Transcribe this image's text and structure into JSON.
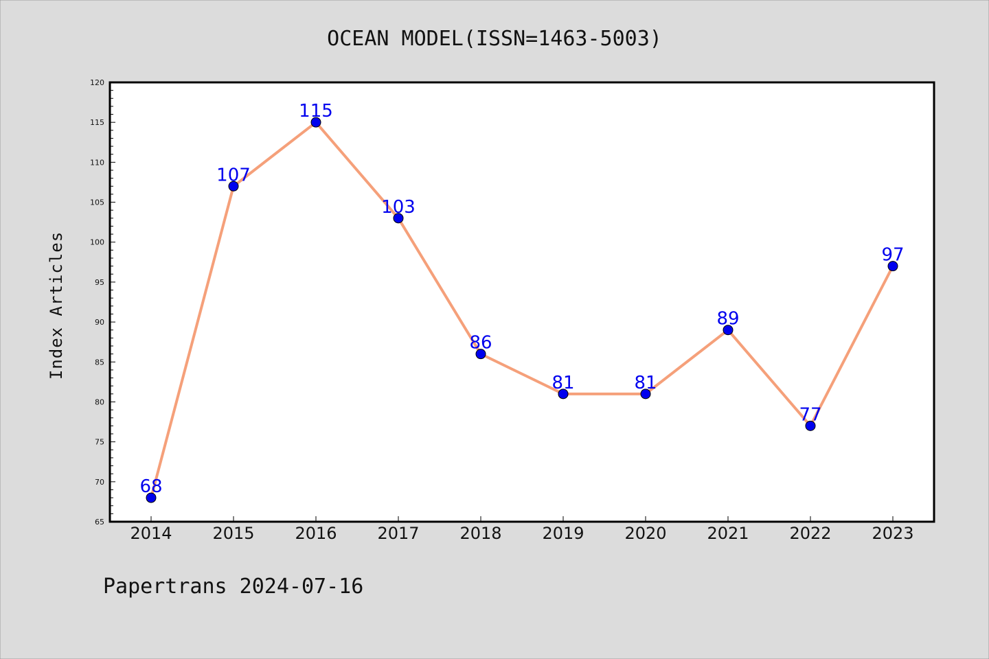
{
  "chart_data": {
    "type": "line",
    "title": "OCEAN MODEL(ISSN=1463-5003)",
    "xlabel": "",
    "ylabel": "Index Articles",
    "footer": "Papertrans 2024-07-16",
    "categories": [
      "2014",
      "2015",
      "2016",
      "2017",
      "2018",
      "2019",
      "2020",
      "2021",
      "2022",
      "2023"
    ],
    "series": [
      {
        "values": [
          68,
          107,
          115,
          103,
          86,
          81,
          81,
          89,
          77,
          97
        ]
      }
    ],
    "ylim": [
      65,
      120
    ],
    "yticks": [
      "65",
      "70",
      "75",
      "80",
      "85",
      "90",
      "95",
      "100",
      "105",
      "110",
      "115",
      "120"
    ],
    "grid": false,
    "colors": {
      "background": "#dcdcdc",
      "plot_background": "#ffffff",
      "line": "#f5a07a",
      "marker": "#0000ee",
      "data_label": "#0000ee"
    }
  }
}
